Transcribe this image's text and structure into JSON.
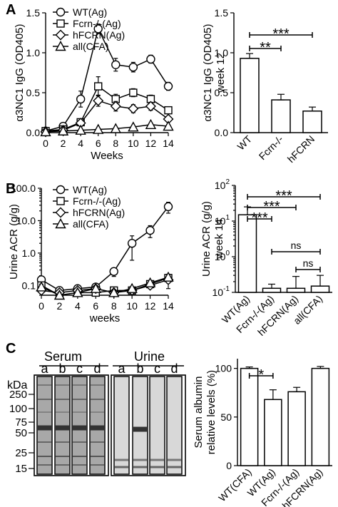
{
  "panels": {
    "A": {
      "letter": "A",
      "line": {
        "type": "line",
        "x": [
          0,
          2,
          4,
          6,
          8,
          10,
          12,
          14
        ],
        "xlim": [
          0,
          14
        ],
        "ylim": [
          0,
          1.5
        ],
        "xticks": [
          "0",
          "2",
          "4",
          "6",
          "8",
          "10",
          "12",
          "14"
        ],
        "yticks": [
          "0.0",
          "0.5",
          "1.0",
          "1.5"
        ],
        "xlabel": "Weeks",
        "ylabel": "α3NC1 IgG (OD405)",
        "legend_position": "top-left",
        "series": [
          {
            "name": "WT(Ag)",
            "marker": "circle",
            "values": [
              0.02,
              0.08,
              0.42,
              1.3,
              0.85,
              0.82,
              0.92,
              0.58
            ],
            "err": [
              0.01,
              0.03,
              0.1,
              0.06,
              0.08,
              0.06,
              0.05,
              0.05
            ]
          },
          {
            "name": "Fcrn-/-(Ag)",
            "marker": "square",
            "values": [
              0.02,
              0.04,
              0.13,
              0.58,
              0.42,
              0.5,
              0.42,
              0.28
            ],
            "err": [
              0.01,
              0.02,
              0.04,
              0.12,
              0.06,
              0.05,
              0.05,
              0.04
            ]
          },
          {
            "name": "hFCRN(Ag)",
            "marker": "diamond",
            "values": [
              0.01,
              0.03,
              0.12,
              0.4,
              0.33,
              0.3,
              0.33,
              0.17
            ],
            "err": [
              0.01,
              0.02,
              0.03,
              0.07,
              0.06,
              0.05,
              0.05,
              0.03
            ]
          },
          {
            "name": "all(CFA)",
            "marker": "triangle",
            "values": [
              0.01,
              0.02,
              0.03,
              0.04,
              0.05,
              0.07,
              0.1,
              0.08
            ],
            "err": [
              0.01,
              0.01,
              0.01,
              0.01,
              0.01,
              0.01,
              0.02,
              0.02
            ]
          }
        ]
      },
      "bar": {
        "type": "bar",
        "categories": [
          "WT",
          "Fcrn-/-",
          "hFCRN"
        ],
        "values": [
          0.93,
          0.41,
          0.27
        ],
        "err": [
          0.06,
          0.07,
          0.05
        ],
        "ylim": [
          0,
          1.5
        ],
        "yticks": [
          "0.0",
          "0.5",
          "1.0",
          "1.5"
        ],
        "ylabel": "α3NC1 IgG (OD405)",
        "ylabel2": "week 12",
        "significance": [
          {
            "from": 0,
            "to": 2,
            "label": "***"
          },
          {
            "from": 0,
            "to": 1,
            "label": "**"
          }
        ]
      }
    },
    "B": {
      "letter": "B",
      "line": {
        "type": "line",
        "yscale": "log",
        "x": [
          0,
          2,
          4,
          6,
          8,
          10,
          12,
          14
        ],
        "xlim": [
          0,
          14
        ],
        "ylim": [
          0.05,
          100
        ],
        "xticks": [
          "0",
          "2",
          "4",
          "6",
          "8",
          "10",
          "12",
          "14"
        ],
        "yticks": [
          "0.1",
          "1.0",
          "10.0",
          "100.0"
        ],
        "xlabel": "weeks",
        "ylabel": "Urine ACR (g/g)",
        "legend_position": "top-left",
        "series": [
          {
            "name": "WT(Ag)",
            "marker": "circle",
            "values": [
              0.15,
              0.07,
              0.08,
              0.09,
              0.27,
              2.0,
              5.0,
              27
            ],
            "err": [
              0.03,
              0.01,
              0.01,
              0.02,
              0.08,
              1.4,
              2.0,
              10
            ]
          },
          {
            "name": "Fcrn-/-(Ag)",
            "marker": "square",
            "values": [
              0.1,
              0.05,
              0.06,
              0.06,
              0.07,
              0.07,
              0.11,
              0.17
            ],
            "err": [
              0.02,
              0.01,
              0.01,
              0.01,
              0.01,
              0.01,
              0.02,
              0.05
            ]
          },
          {
            "name": "hFCRN(Ag)",
            "marker": "diamond",
            "values": [
              0.07,
              0.06,
              0.07,
              0.08,
              0.06,
              0.07,
              0.1,
              0.15
            ],
            "err": [
              0.01,
              0.01,
              0.01,
              0.01,
              0.01,
              0.01,
              0.02,
              0.07
            ]
          },
          {
            "name": "all(CFA)",
            "marker": "triangle",
            "values": [
              0.09,
              0.05,
              0.06,
              0.08,
              0.06,
              0.08,
              0.12,
              0.18
            ],
            "err": [
              0.02,
              0.01,
              0.01,
              0.01,
              0.01,
              0.01,
              0.02,
              0.04
            ]
          }
        ]
      },
      "bar": {
        "type": "bar",
        "yscale": "log",
        "categories": [
          "WT(Ag)",
          "Fcrn-/-(Ag)",
          "hFCRN(Ag)",
          "all(CFA)"
        ],
        "values": [
          15,
          0.13,
          0.13,
          0.15
        ],
        "err": [
          10,
          0.04,
          0.15,
          0.15
        ],
        "ylim": [
          0.1,
          100
        ],
        "yticks": [
          {
            "base": "10",
            "exp": "-1"
          },
          {
            "base": "10",
            "exp": "0"
          },
          {
            "base": "10",
            "exp": "1"
          },
          {
            "base": "10",
            "exp": "2"
          }
        ],
        "ylabel": "Urine ACR (g/g)",
        "ylabel2": "week 14",
        "significance": [
          {
            "from": 0,
            "to": 3,
            "label": "***"
          },
          {
            "from": 0,
            "to": 2,
            "label": "***"
          },
          {
            "from": 0,
            "to": 1,
            "label": "***"
          },
          {
            "from": 1,
            "to": 3,
            "label": "ns"
          },
          {
            "from": 2,
            "to": 3,
            "label": "ns"
          }
        ]
      }
    },
    "C": {
      "letter": "C",
      "gel": {
        "unit": "kDa",
        "markers": [
          "250",
          "100",
          "75",
          "50",
          "25",
          "15"
        ],
        "group_labels": [
          "Serum",
          "Urine"
        ],
        "lanes": [
          "a",
          "b",
          "c",
          "d"
        ]
      },
      "bar": {
        "type": "bar",
        "categories": [
          "WT(CFA)",
          "WT(Ag)",
          "Fcrn-/-(Ag)",
          "hFCRN(Ag)"
        ],
        "values": [
          100,
          68,
          76,
          100
        ],
        "err": [
          1.5,
          10,
          4.5,
          2
        ],
        "ylim": [
          0,
          110
        ],
        "yticks": [
          "0",
          "50",
          "100"
        ],
        "ylabel": "Serum albumin",
        "ylabel2": "relative levels (%)",
        "significance": [
          {
            "from": 0,
            "to": 1,
            "label": "*"
          }
        ]
      }
    }
  }
}
